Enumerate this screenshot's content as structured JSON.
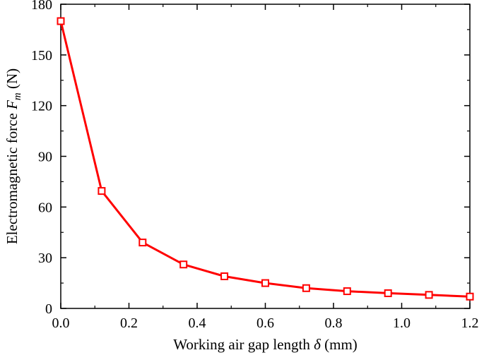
{
  "chart_data": {
    "type": "line",
    "title": "",
    "xlabel": {
      "prefix": "Working air gap length ",
      "symbol": "δ",
      "suffix": " (mm)"
    },
    "ylabel": {
      "prefix": "Electromagnetic force ",
      "symbol": "F",
      "subscript": "m",
      "suffix": " (N)"
    },
    "xlim": [
      0,
      1.2
    ],
    "ylim": [
      0,
      180
    ],
    "xticks": [
      "0.0",
      "0.2",
      "0.4",
      "0.6",
      "0.8",
      "1.0",
      "1.2"
    ],
    "yticks": [
      "0",
      "30",
      "60",
      "90",
      "120",
      "150",
      "180"
    ],
    "grid": false,
    "series": [
      {
        "color": "#ff0000",
        "marker": "open-square",
        "x": [
          0.0,
          0.12,
          0.24,
          0.36,
          0.48,
          0.6,
          0.72,
          0.84,
          0.96,
          1.08,
          1.2
        ],
        "y": [
          170,
          69.5,
          39,
          26,
          19,
          15,
          12,
          10.2,
          9,
          8,
          7
        ]
      }
    ]
  }
}
